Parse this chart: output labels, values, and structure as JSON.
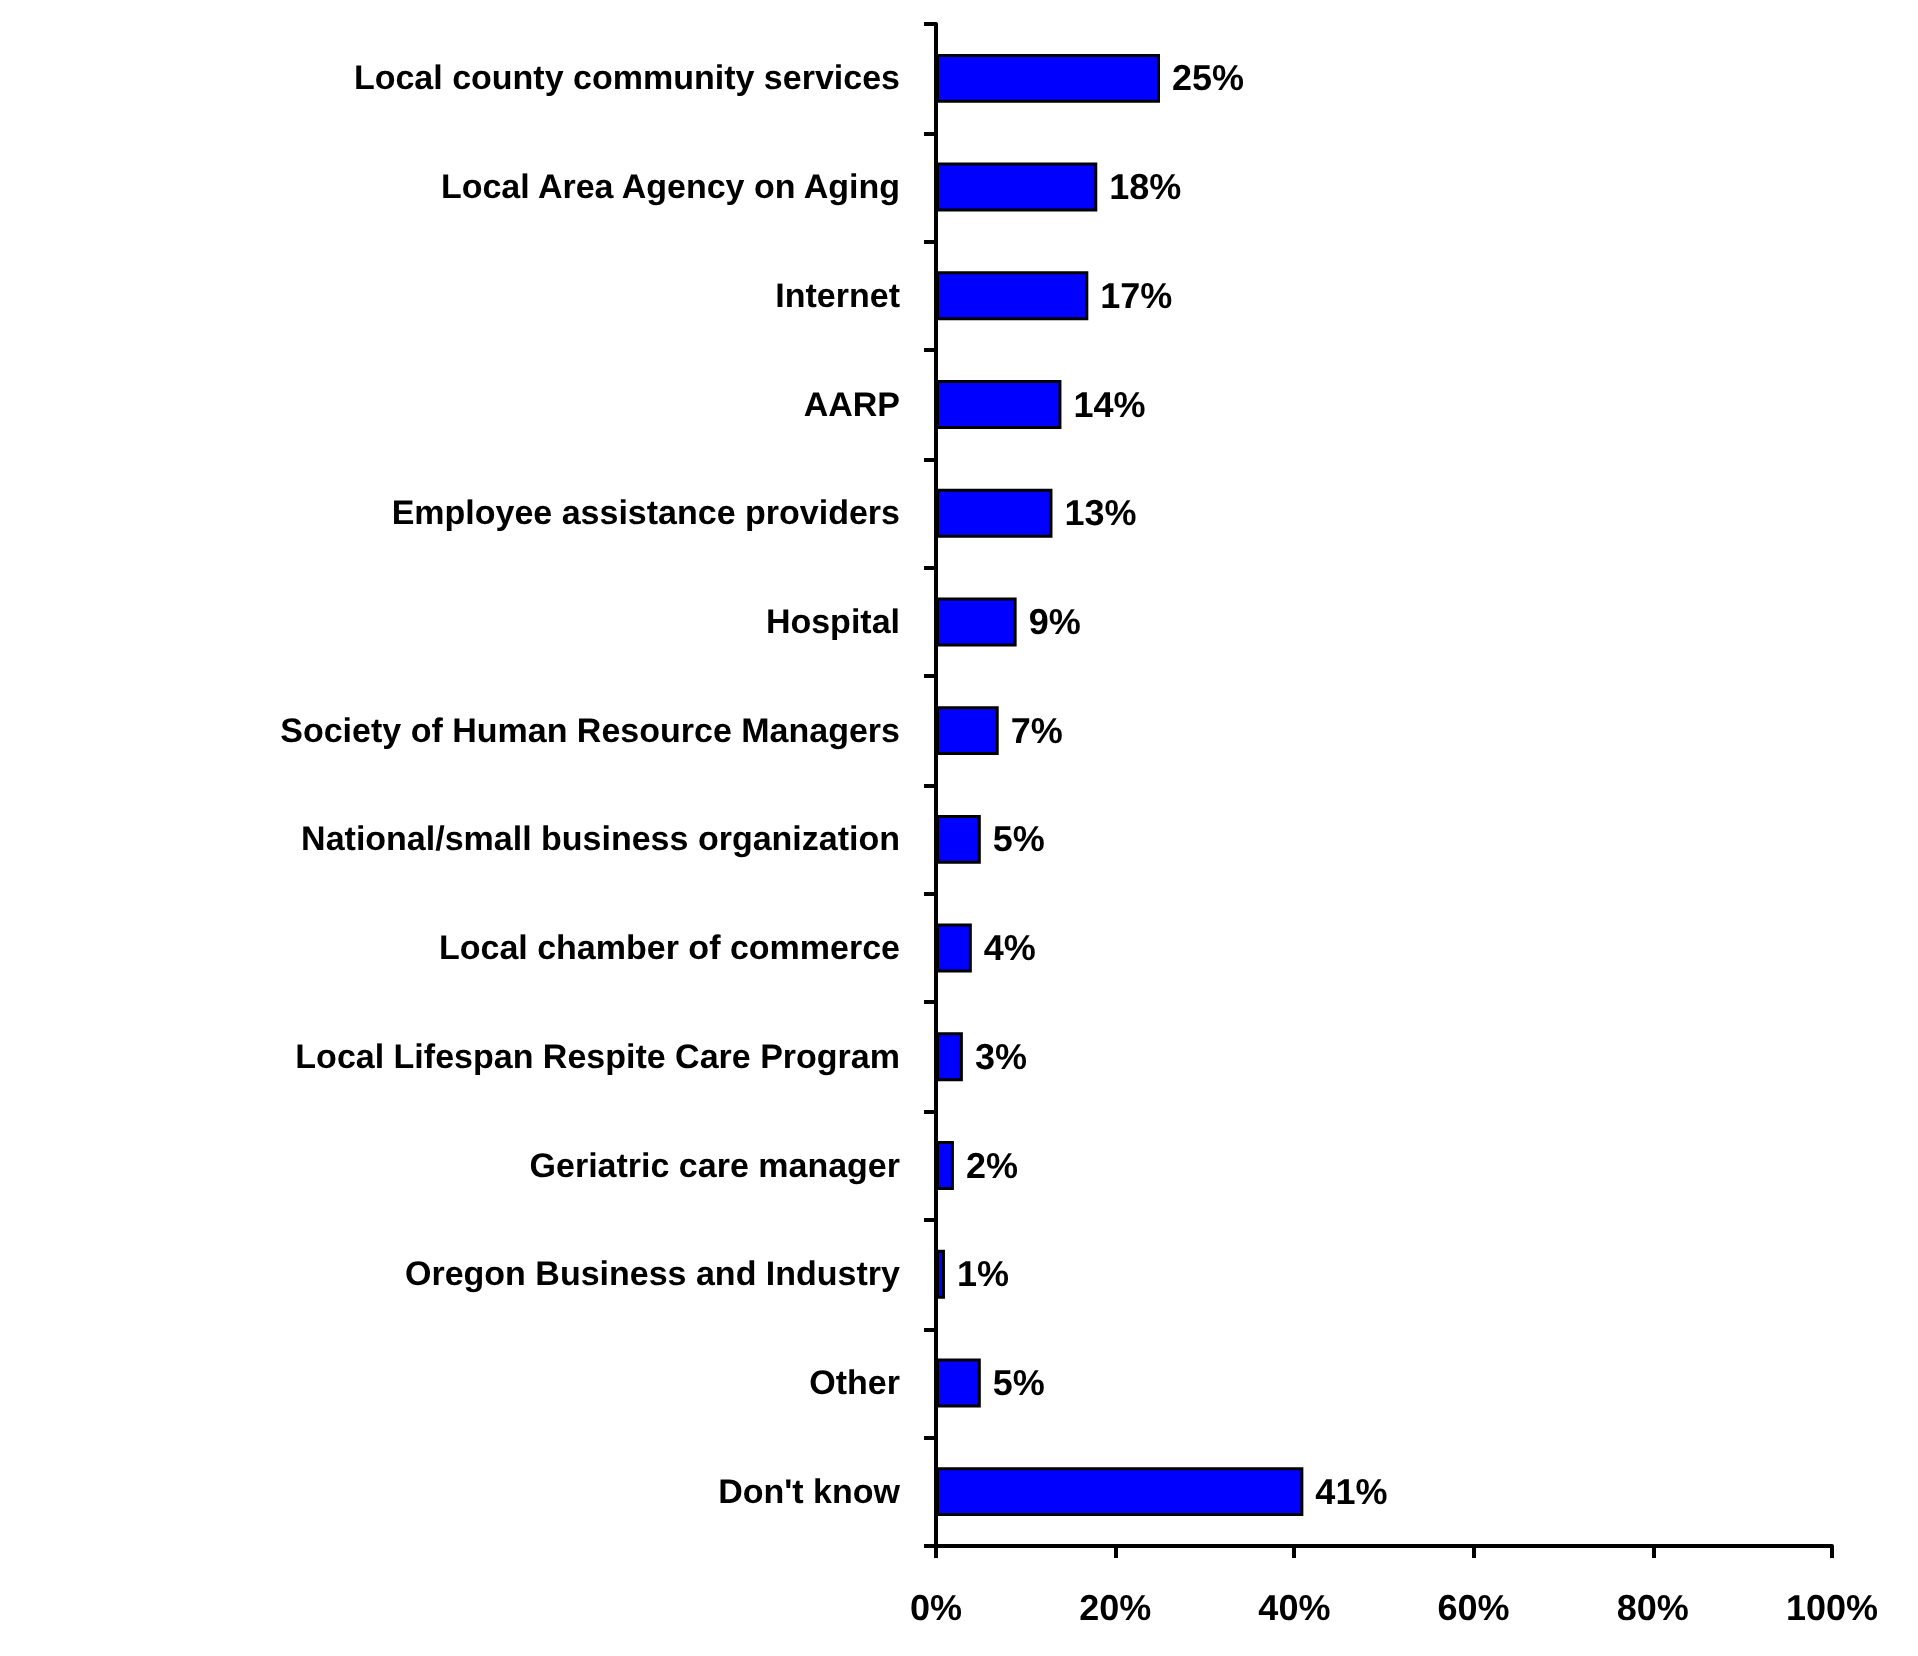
{
  "chart_data": {
    "type": "bar",
    "orientation": "horizontal",
    "categories": [
      "Local county community services",
      "Local Area Agency on Aging",
      "Internet",
      "AARP",
      "Employee assistance providers",
      "Hospital",
      "Society of Human Resource Managers",
      "National/small business organization",
      "Local chamber of commerce",
      "Local Lifespan Respite Care Program",
      "Geriatric care manager",
      "Oregon Business and Industry",
      "Other",
      "Don't know"
    ],
    "values": [
      25,
      18,
      17,
      14,
      13,
      9,
      7,
      5,
      4,
      3,
      2,
      1,
      5,
      41
    ],
    "value_labels": [
      "25%",
      "18%",
      "17%",
      "14%",
      "13%",
      "9%",
      "7%",
      "5%",
      "4%",
      "3%",
      "2%",
      "1%",
      "5%",
      "41%"
    ],
    "color": "#0000ff",
    "xlim": [
      0,
      100
    ],
    "xticks": [
      {
        "value": 0,
        "label": "0%"
      },
      {
        "value": 20,
        "label": "20%"
      },
      {
        "value": 40,
        "label": "40%"
      },
      {
        "value": 60,
        "label": "60%"
      },
      {
        "value": 80,
        "label": "80%"
      },
      {
        "value": 100,
        "label": "100%"
      }
    ],
    "grid": false
  }
}
